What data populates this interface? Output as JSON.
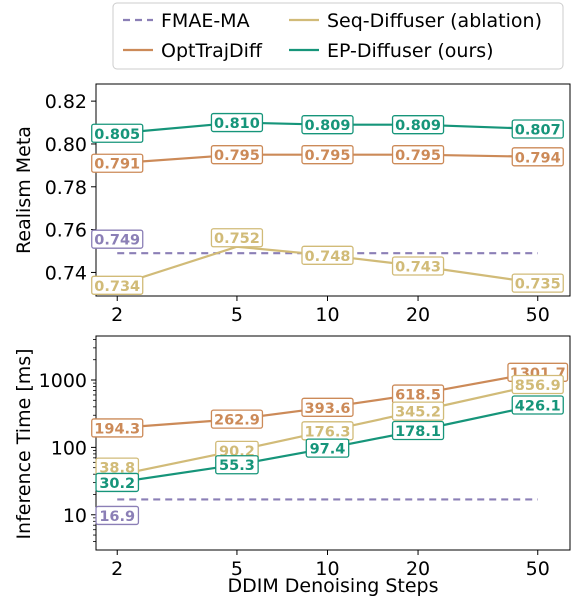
{
  "legend": {
    "entries": [
      {
        "label": "FMAE-MA",
        "color": "#8b7fb6",
        "dash": true
      },
      {
        "label": "Seq-Diffuser (ablation)",
        "color": "#d1bb78",
        "dash": false
      },
      {
        "label": "OptTrajDiff",
        "color": "#cc8a58",
        "dash": false
      },
      {
        "label": "EP-Diffuser (ours)",
        "color": "#16957a",
        "dash": false
      }
    ]
  },
  "chart_data": [
    {
      "type": "line",
      "x_scale": "log",
      "y_scale": "linear",
      "x": [
        2,
        5,
        10,
        20,
        50
      ],
      "x_ticks": [
        "2",
        "5",
        "10",
        "20",
        "50"
      ],
      "ylabel": "Realism Meta",
      "xlabel": "",
      "ylim": [
        0.729,
        0.828
      ],
      "y_ticks": [
        "0.74",
        "0.76",
        "0.78",
        "0.80",
        "0.82"
      ],
      "y_tick_values": [
        0.74,
        0.76,
        0.78,
        0.8,
        0.82
      ],
      "grid": false,
      "series": [
        {
          "name": "FMAE-MA",
          "color": "#8b7fb6",
          "dash": true,
          "values": [
            0.749,
            0.749,
            0.749,
            0.749,
            0.749
          ],
          "labels": [
            "0.749"
          ]
        },
        {
          "name": "OptTrajDiff",
          "color": "#cc8a58",
          "dash": false,
          "values": [
            0.791,
            0.795,
            0.795,
            0.795,
            0.794
          ],
          "labels": [
            "0.791",
            "0.795",
            "0.795",
            "0.795",
            "0.794"
          ]
        },
        {
          "name": "Seq-Diffuser (ablation)",
          "color": "#d1bb78",
          "dash": false,
          "values": [
            0.734,
            0.752,
            0.748,
            0.743,
            0.735
          ],
          "labels": [
            "0.734",
            "0.752",
            "0.748",
            "0.743",
            "0.735"
          ]
        },
        {
          "name": "EP-Diffuser (ours)",
          "color": "#16957a",
          "dash": false,
          "values": [
            0.805,
            0.81,
            0.809,
            0.809,
            0.807
          ],
          "labels": [
            "0.805",
            "0.810",
            "0.809",
            "0.809",
            "0.807"
          ]
        }
      ]
    },
    {
      "type": "line",
      "x_scale": "log",
      "y_scale": "log",
      "x": [
        2,
        5,
        10,
        20,
        50
      ],
      "x_ticks": [
        "2",
        "5",
        "10",
        "20",
        "50"
      ],
      "ylabel": "Inference Time [ms]",
      "xlabel": "DDIM Denoising Steps",
      "ylim": [
        3,
        4500
      ],
      "y_ticks": [
        "10",
        "100",
        "1000"
      ],
      "y_tick_values": [
        10,
        100,
        1000
      ],
      "grid": false,
      "series": [
        {
          "name": "FMAE-MA",
          "color": "#8b7fb6",
          "dash": true,
          "values": [
            16.9,
            16.9,
            16.9,
            16.9,
            16.9
          ],
          "labels": [
            "16.9"
          ]
        },
        {
          "name": "OptTrajDiff",
          "color": "#cc8a58",
          "dash": false,
          "values": [
            194.3,
            262.9,
            393.6,
            618.5,
            1301.7
          ],
          "labels": [
            "194.3",
            "262.9",
            "393.6",
            "618.5",
            "1301.7"
          ]
        },
        {
          "name": "Seq-Diffuser (ablation)",
          "color": "#d1bb78",
          "dash": false,
          "values": [
            38.8,
            90.2,
            176.3,
            345.2,
            856.9
          ],
          "labels": [
            "38.8",
            "90.2",
            "176.3",
            "345.2",
            "856.9"
          ]
        },
        {
          "name": "EP-Diffuser (ours)",
          "color": "#16957a",
          "dash": false,
          "values": [
            30.2,
            55.3,
            97.4,
            178.1,
            426.1
          ],
          "labels": [
            "30.2",
            "55.3",
            "97.4",
            "178.1",
            "426.1"
          ]
        }
      ]
    }
  ]
}
